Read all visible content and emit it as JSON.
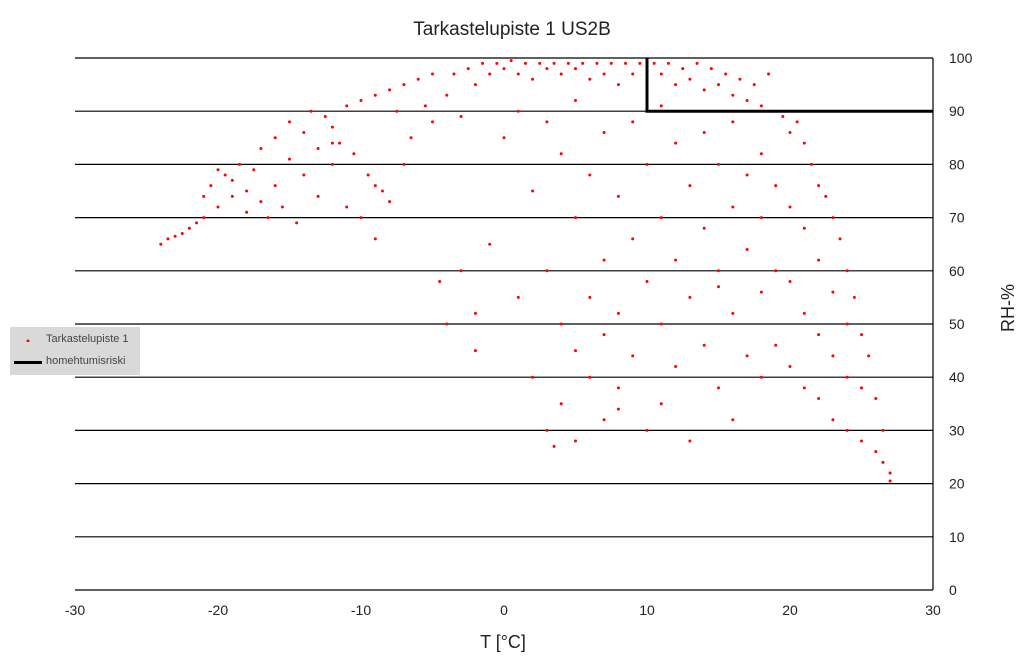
{
  "chart_data": {
    "type": "scatter",
    "title": "Tarkastelupiste 1 US2B",
    "xlabel": "T [°C]",
    "ylabel": "RH-%",
    "xlim": [
      -30,
      30
    ],
    "ylim": [
      0,
      100
    ],
    "x_ticks": [
      -30,
      -20,
      -10,
      0,
      10,
      20,
      30
    ],
    "y_ticks": [
      0,
      10,
      20,
      30,
      40,
      50,
      60,
      70,
      80,
      90,
      100
    ],
    "y_axis_position": "right",
    "grid": "horizontal",
    "legend_position": "left",
    "series": [
      {
        "name": "Tarkastelupiste 1",
        "kind": "scatter",
        "color": "#ff0000",
        "points": [
          [
            -24,
            65
          ],
          [
            -23.5,
            66
          ],
          [
            -23,
            66.5
          ],
          [
            -22.5,
            67
          ],
          [
            -22,
            68
          ],
          [
            -21.5,
            69
          ],
          [
            -21,
            70
          ],
          [
            -21,
            74
          ],
          [
            -20.5,
            76
          ],
          [
            -20,
            79
          ],
          [
            -20,
            72
          ],
          [
            -19.5,
            78
          ],
          [
            -19,
            77
          ],
          [
            -19,
            74
          ],
          [
            -18.5,
            80
          ],
          [
            -18,
            75
          ],
          [
            -18,
            71
          ],
          [
            -17.5,
            79
          ],
          [
            -17,
            73
          ],
          [
            -17,
            83
          ],
          [
            -16.5,
            70
          ],
          [
            -16,
            76
          ],
          [
            -16,
            85
          ],
          [
            -15.5,
            72
          ],
          [
            -15,
            81
          ],
          [
            -15,
            88
          ],
          [
            -14.5,
            69
          ],
          [
            -14,
            78
          ],
          [
            -14,
            86
          ],
          [
            -13.5,
            90
          ],
          [
            -13,
            74
          ],
          [
            -13,
            83
          ],
          [
            -12.5,
            89
          ],
          [
            -12,
            80
          ],
          [
            -12,
            87
          ],
          [
            -11.5,
            84
          ],
          [
            -11,
            91
          ],
          [
            -11,
            72
          ],
          [
            -10.5,
            82
          ],
          [
            -10,
            92
          ],
          [
            -10,
            70
          ],
          [
            -9.5,
            78
          ],
          [
            -9,
            93
          ],
          [
            -9,
            76
          ],
          [
            -8.5,
            75
          ],
          [
            -8,
            94
          ],
          [
            -8,
            73
          ],
          [
            -7.5,
            90
          ],
          [
            -7,
            95
          ],
          [
            -7,
            80
          ],
          [
            -6.5,
            85
          ],
          [
            -6,
            96
          ],
          [
            -5.5,
            91
          ],
          [
            -5,
            88
          ],
          [
            -5,
            97
          ],
          [
            -4.5,
            58
          ],
          [
            -4,
            93
          ],
          [
            -4,
            50
          ],
          [
            -3.5,
            97
          ],
          [
            -3,
            60
          ],
          [
            -3,
            89
          ],
          [
            -2.5,
            98
          ],
          [
            -2,
            95
          ],
          [
            -2,
            45
          ],
          [
            -1.5,
            99
          ],
          [
            -1,
            97
          ],
          [
            -1,
            65
          ],
          [
            -0.5,
            99
          ],
          [
            0,
            98
          ],
          [
            0,
            85
          ],
          [
            0.5,
            99.5
          ],
          [
            1,
            97
          ],
          [
            1,
            90
          ],
          [
            1,
            55
          ],
          [
            1.5,
            99
          ],
          [
            2,
            96
          ],
          [
            2,
            75
          ],
          [
            2,
            40
          ],
          [
            2.5,
            99
          ],
          [
            3,
            98
          ],
          [
            3,
            88
          ],
          [
            3,
            60
          ],
          [
            3,
            30
          ],
          [
            3.5,
            99
          ],
          [
            4,
            97
          ],
          [
            4,
            82
          ],
          [
            4,
            50
          ],
          [
            4,
            35
          ],
          [
            4.5,
            99
          ],
          [
            5,
            98
          ],
          [
            5,
            92
          ],
          [
            5,
            70
          ],
          [
            5,
            45
          ],
          [
            5,
            28
          ],
          [
            5.5,
            99
          ],
          [
            6,
            96
          ],
          [
            6,
            78
          ],
          [
            6,
            55
          ],
          [
            6,
            40
          ],
          [
            6.5,
            99
          ],
          [
            7,
            97
          ],
          [
            7,
            86
          ],
          [
            7,
            62
          ],
          [
            7,
            48
          ],
          [
            7,
            32
          ],
          [
            7.5,
            99
          ],
          [
            8,
            95
          ],
          [
            8,
            74
          ],
          [
            8,
            52
          ],
          [
            8,
            38
          ],
          [
            8.5,
            99
          ],
          [
            9,
            97
          ],
          [
            9,
            88
          ],
          [
            9,
            66
          ],
          [
            9,
            44
          ],
          [
            9.5,
            99
          ],
          [
            10,
            96
          ],
          [
            10,
            80
          ],
          [
            10,
            58
          ],
          [
            10,
            30
          ],
          [
            10.5,
            99
          ],
          [
            11,
            97
          ],
          [
            11,
            91
          ],
          [
            11,
            70
          ],
          [
            11,
            50
          ],
          [
            11,
            35
          ],
          [
            11.5,
            99
          ],
          [
            12,
            95
          ],
          [
            12,
            84
          ],
          [
            12,
            62
          ],
          [
            12,
            42
          ],
          [
            12.5,
            98
          ],
          [
            13,
            96
          ],
          [
            13,
            76
          ],
          [
            13,
            55
          ],
          [
            13,
            28
          ],
          [
            13.5,
            99
          ],
          [
            14,
            94
          ],
          [
            14,
            86
          ],
          [
            14,
            68
          ],
          [
            14,
            46
          ],
          [
            14.5,
            98
          ],
          [
            15,
            95
          ],
          [
            15,
            80
          ],
          [
            15,
            60
          ],
          [
            15,
            38
          ],
          [
            15.5,
            97
          ],
          [
            16,
            93
          ],
          [
            16,
            88
          ],
          [
            16,
            72
          ],
          [
            16,
            52
          ],
          [
            16,
            32
          ],
          [
            16.5,
            96
          ],
          [
            17,
            92
          ],
          [
            17,
            78
          ],
          [
            17,
            64
          ],
          [
            17,
            44
          ],
          [
            17.5,
            95
          ],
          [
            18,
            91
          ],
          [
            18,
            82
          ],
          [
            18,
            70
          ],
          [
            18,
            56
          ],
          [
            18,
            40
          ],
          [
            18.5,
            97
          ],
          [
            19,
            90
          ],
          [
            19,
            76
          ],
          [
            19,
            60
          ],
          [
            19,
            46
          ],
          [
            19.5,
            89
          ],
          [
            20,
            86
          ],
          [
            20,
            72
          ],
          [
            20,
            58
          ],
          [
            20,
            42
          ],
          [
            20.5,
            88
          ],
          [
            21,
            84
          ],
          [
            21,
            68
          ],
          [
            21,
            52
          ],
          [
            21,
            38
          ],
          [
            21.5,
            80
          ],
          [
            22,
            76
          ],
          [
            22,
            62
          ],
          [
            22,
            48
          ],
          [
            22,
            36
          ],
          [
            22.5,
            74
          ],
          [
            23,
            70
          ],
          [
            23,
            56
          ],
          [
            23,
            44
          ],
          [
            23,
            32
          ],
          [
            23.5,
            66
          ],
          [
            24,
            60
          ],
          [
            24,
            50
          ],
          [
            24,
            40
          ],
          [
            24,
            30
          ],
          [
            24.5,
            55
          ],
          [
            25,
            48
          ],
          [
            25,
            38
          ],
          [
            25,
            28
          ],
          [
            25.5,
            44
          ],
          [
            26,
            36
          ],
          [
            26,
            26
          ],
          [
            26.5,
            30
          ],
          [
            26.5,
            24
          ],
          [
            27,
            22
          ],
          [
            27,
            20.5
          ],
          [
            3.5,
            27
          ],
          [
            8,
            34
          ],
          [
            -2,
            52
          ],
          [
            -9,
            66
          ],
          [
            -12,
            84
          ],
          [
            15,
            57
          ]
        ]
      },
      {
        "name": "homehtumisriski",
        "kind": "line",
        "color": "#000000",
        "points": [
          [
            10,
            100
          ],
          [
            10,
            90
          ],
          [
            30,
            90
          ]
        ]
      }
    ]
  }
}
